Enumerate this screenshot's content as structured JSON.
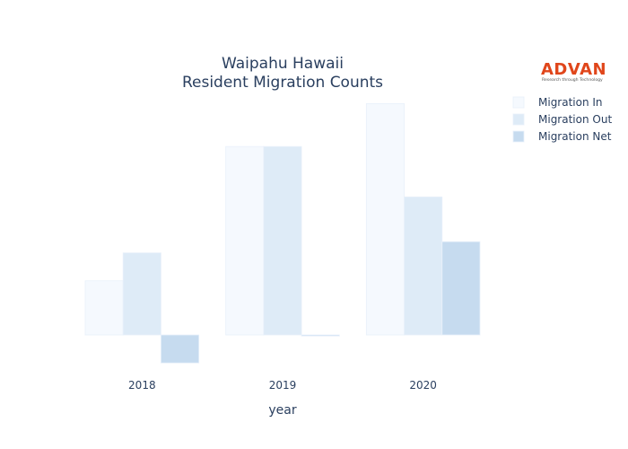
{
  "chart_data": {
    "type": "bar",
    "title": [
      "Waipahu Hawaii",
      "Resident Migration Counts"
    ],
    "xlabel": "year",
    "ylabel": "",
    "categories": [
      "2018",
      "2019",
      "2020"
    ],
    "series": [
      {
        "name": "Migration In",
        "values": [
          1450,
          5050,
          6200
        ],
        "color": "#f5f9fe"
      },
      {
        "name": "Migration Out",
        "values": [
          2200,
          5050,
          3700
        ],
        "color": "#deebf7"
      },
      {
        "name": "Migration Net",
        "values": [
          -750,
          0,
          2500
        ],
        "color": "#c6dbef"
      }
    ],
    "ylim": [
      -900,
      6200
    ],
    "grid": false,
    "legend_position": "top-right"
  },
  "logo": {
    "name": "ADVAN",
    "tagline": "Research through Technology"
  }
}
